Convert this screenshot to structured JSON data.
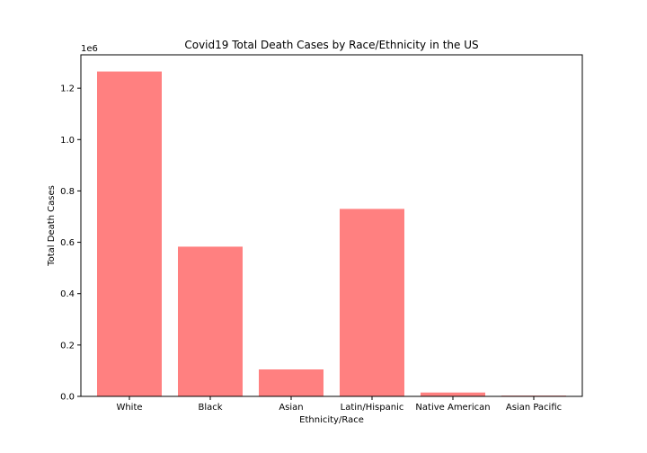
{
  "chart_data": {
    "type": "bar",
    "title": "Covid19 Total Death Cases by Race/Ethnicity in the US",
    "xlabel": "Ethnicity/Race",
    "ylabel": "Total Death Cases",
    "y_offset_label": "1e6",
    "categories": [
      "White",
      "Black",
      "Asian",
      "Latin/Hispanic",
      "Native American",
      "Asian Pacific"
    ],
    "values": [
      1265000,
      583000,
      105000,
      730000,
      15000,
      3000
    ],
    "ylim": [
      0,
      1330000
    ],
    "yticks": [
      0,
      200000,
      400000,
      600000,
      800000,
      1000000,
      1200000
    ],
    "ytick_labels": [
      "0.0",
      "0.2",
      "0.4",
      "0.6",
      "0.8",
      "1.0",
      "1.2"
    ],
    "bar_color": "#ff8080",
    "grid": false
  }
}
